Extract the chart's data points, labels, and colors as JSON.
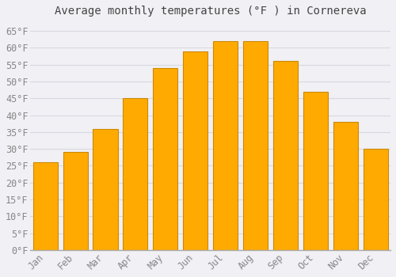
{
  "title": "Average monthly temperatures (°F ) in Cornereva",
  "months": [
    "Jan",
    "Feb",
    "Mar",
    "Apr",
    "May",
    "Jun",
    "Jul",
    "Aug",
    "Sep",
    "Oct",
    "Nov",
    "Dec"
  ],
  "values": [
    26,
    29,
    36,
    45,
    54,
    59,
    62,
    62,
    56,
    47,
    38,
    30
  ],
  "bar_color": "#FFAA00",
  "bar_edge_color": "#CC8800",
  "background_color": "#f0f0f5",
  "plot_bg_color": "#f0f0f5",
  "grid_color": "#d8d8e0",
  "ylim": [
    0,
    68
  ],
  "yticks": [
    0,
    5,
    10,
    15,
    20,
    25,
    30,
    35,
    40,
    45,
    50,
    55,
    60,
    65
  ],
  "title_fontsize": 10,
  "tick_fontsize": 8.5,
  "title_color": "#444444",
  "tick_color": "#888888",
  "bar_width": 0.82
}
